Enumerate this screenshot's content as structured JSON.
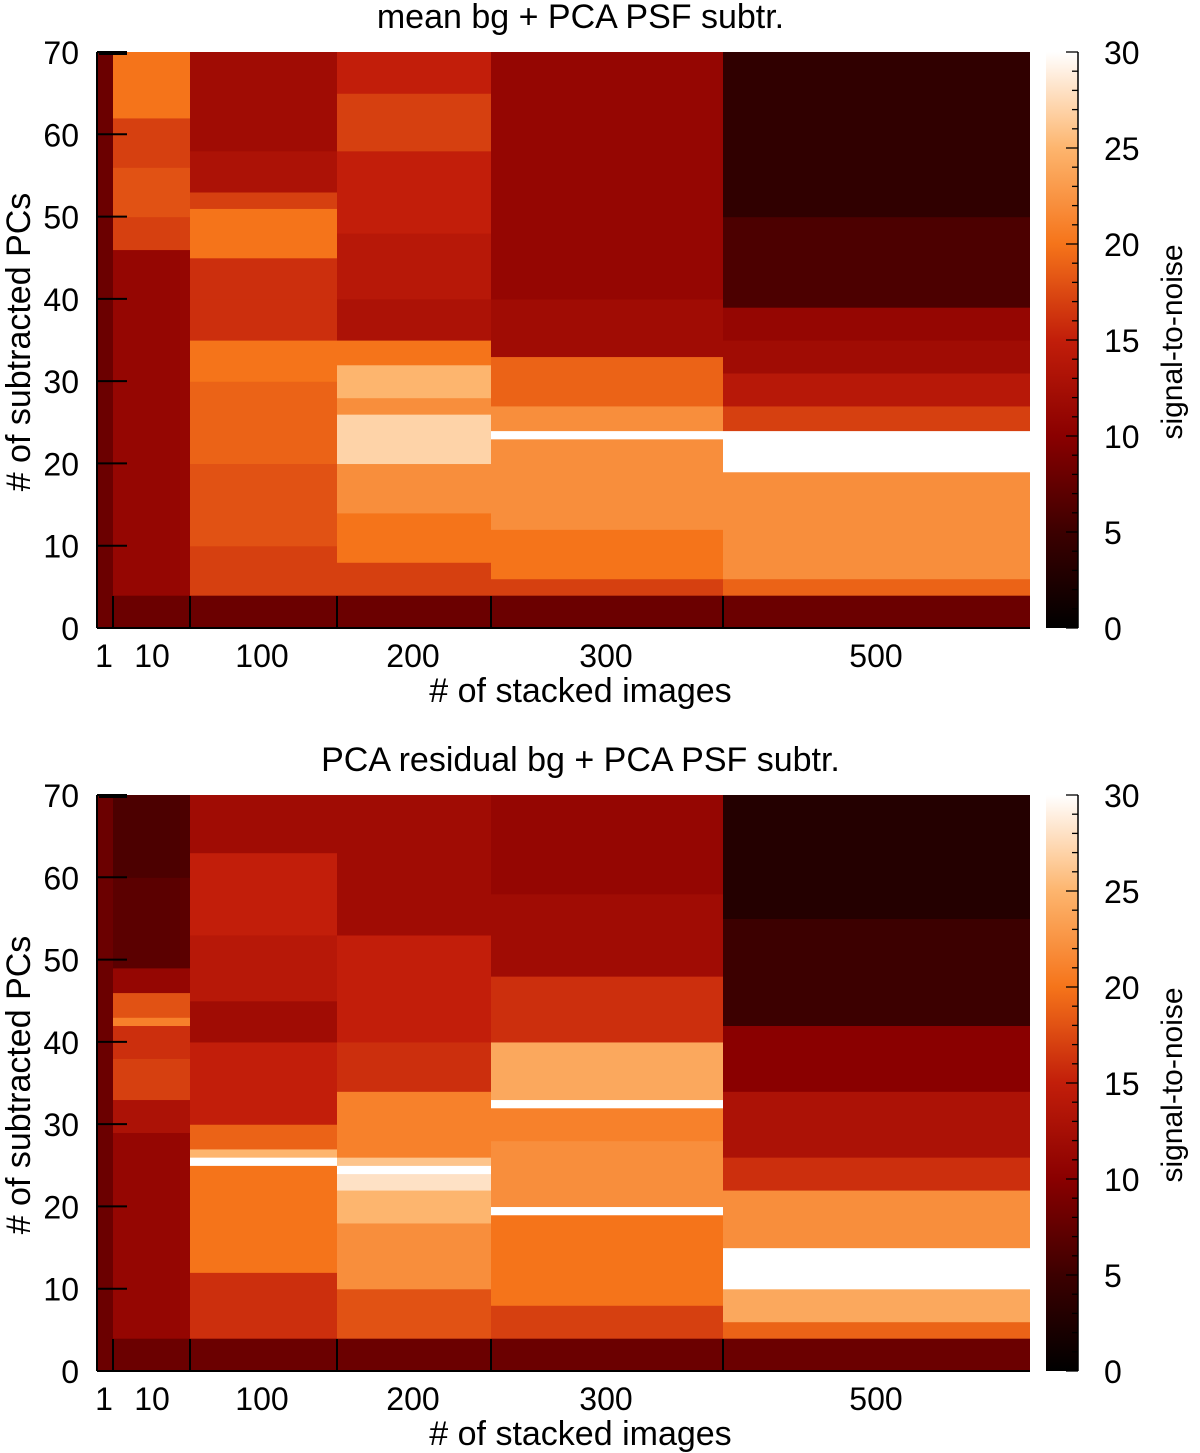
{
  "chart_data": [
    {
      "type": "heatmap",
      "title": "mean bg + PCA PSF subtr.",
      "xlabel": "# of stacked images",
      "ylabel": "# of subtracted PCs",
      "colorbar_label": "signal-to-noise",
      "x_categories": [
        "1",
        "10",
        "100",
        "200",
        "300",
        "500"
      ],
      "ylim": [
        0,
        70
      ],
      "y_ticks": [
        0,
        10,
        20,
        30,
        40,
        50,
        60,
        70
      ],
      "colorbar_range": [
        0,
        30
      ],
      "colorbar_ticks": [
        0,
        5,
        10,
        15,
        20,
        25,
        30
      ],
      "colormap": [
        "#000000",
        "#3c0000",
        "#8a0000",
        "#c21e0a",
        "#f5741a",
        "#fdb56e",
        "#ffffff"
      ],
      "columns": [
        {
          "category": "1",
          "segments": [
            {
              "y0": 0,
              "y1": 70,
              "value": 8
            }
          ]
        },
        {
          "category": "10",
          "segments": [
            {
              "y0": 0,
              "y1": 4,
              "value": 8
            },
            {
              "y0": 4,
              "y1": 46,
              "value": 11
            },
            {
              "y0": 46,
              "y1": 50,
              "value": 17
            },
            {
              "y0": 50,
              "y1": 56,
              "value": 18
            },
            {
              "y0": 56,
              "y1": 62,
              "value": 17
            },
            {
              "y0": 62,
              "y1": 70,
              "value": 20
            }
          ]
        },
        {
          "category": "100",
          "segments": [
            {
              "y0": 0,
              "y1": 4,
              "value": 8
            },
            {
              "y0": 4,
              "y1": 10,
              "value": 17
            },
            {
              "y0": 10,
              "y1": 20,
              "value": 18
            },
            {
              "y0": 20,
              "y1": 30,
              "value": 19
            },
            {
              "y0": 30,
              "y1": 35,
              "value": 20
            },
            {
              "y0": 35,
              "y1": 40,
              "value": 16
            },
            {
              "y0": 40,
              "y1": 45,
              "value": 16
            },
            {
              "y0": 45,
              "y1": 51,
              "value": 20
            },
            {
              "y0": 51,
              "y1": 53,
              "value": 17
            },
            {
              "y0": 53,
              "y1": 58,
              "value": 13
            },
            {
              "y0": 58,
              "y1": 70,
              "value": 12
            }
          ]
        },
        {
          "category": "200",
          "segments": [
            {
              "y0": 0,
              "y1": 4,
              "value": 8
            },
            {
              "y0": 4,
              "y1": 8,
              "value": 17
            },
            {
              "y0": 8,
              "y1": 14,
              "value": 20
            },
            {
              "y0": 14,
              "y1": 20,
              "value": 22
            },
            {
              "y0": 20,
              "y1": 26,
              "value": 27
            },
            {
              "y0": 26,
              "y1": 28,
              "value": 22
            },
            {
              "y0": 28,
              "y1": 32,
              "value": 25
            },
            {
              "y0": 32,
              "y1": 35,
              "value": 20
            },
            {
              "y0": 35,
              "y1": 40,
              "value": 13
            },
            {
              "y0": 40,
              "y1": 48,
              "value": 14
            },
            {
              "y0": 48,
              "y1": 58,
              "value": 15
            },
            {
              "y0": 58,
              "y1": 65,
              "value": 17
            },
            {
              "y0": 65,
              "y1": 70,
              "value": 15
            }
          ]
        },
        {
          "category": "300",
          "segments": [
            {
              "y0": 0,
              "y1": 4,
              "value": 8
            },
            {
              "y0": 4,
              "y1": 6,
              "value": 17
            },
            {
              "y0": 6,
              "y1": 12,
              "value": 20
            },
            {
              "y0": 12,
              "y1": 23,
              "value": 22
            },
            {
              "y0": 23,
              "y1": 24,
              "value": 30
            },
            {
              "y0": 24,
              "y1": 27,
              "value": 22
            },
            {
              "y0": 27,
              "y1": 33,
              "value": 19
            },
            {
              "y0": 33,
              "y1": 40,
              "value": 12
            },
            {
              "y0": 40,
              "y1": 55,
              "value": 11
            },
            {
              "y0": 55,
              "y1": 70,
              "value": 11
            }
          ]
        },
        {
          "category": "500",
          "segments": [
            {
              "y0": 0,
              "y1": 4,
              "value": 8
            },
            {
              "y0": 4,
              "y1": 6,
              "value": 19
            },
            {
              "y0": 6,
              "y1": 19,
              "value": 22
            },
            {
              "y0": 19,
              "y1": 24,
              "value": 30
            },
            {
              "y0": 24,
              "y1": 27,
              "value": 17
            },
            {
              "y0": 27,
              "y1": 31,
              "value": 14
            },
            {
              "y0": 31,
              "y1": 35,
              "value": 12
            },
            {
              "y0": 35,
              "y1": 39,
              "value": 11
            },
            {
              "y0": 39,
              "y1": 50,
              "value": 6
            },
            {
              "y0": 50,
              "y1": 70,
              "value": 4
            }
          ]
        }
      ]
    },
    {
      "type": "heatmap",
      "title": "PCA residual bg + PCA PSF subtr.",
      "xlabel": "# of stacked images",
      "ylabel": "# of subtracted PCs",
      "colorbar_label": "signal-to-noise",
      "x_categories": [
        "1",
        "10",
        "100",
        "200",
        "300",
        "500"
      ],
      "ylim": [
        0,
        70
      ],
      "y_ticks": [
        0,
        10,
        20,
        30,
        40,
        50,
        60,
        70
      ],
      "colorbar_range": [
        0,
        30
      ],
      "colorbar_ticks": [
        0,
        5,
        10,
        15,
        20,
        25,
        30
      ],
      "colormap": [
        "#000000",
        "#3c0000",
        "#8a0000",
        "#c21e0a",
        "#f5741a",
        "#fdb56e",
        "#ffffff"
      ],
      "columns": [
        {
          "category": "1",
          "segments": [
            {
              "y0": 0,
              "y1": 70,
              "value": 8
            }
          ]
        },
        {
          "category": "10",
          "segments": [
            {
              "y0": 0,
              "y1": 4,
              "value": 8
            },
            {
              "y0": 4,
              "y1": 29,
              "value": 11
            },
            {
              "y0": 29,
              "y1": 33,
              "value": 13
            },
            {
              "y0": 33,
              "y1": 38,
              "value": 17
            },
            {
              "y0": 38,
              "y1": 42,
              "value": 16
            },
            {
              "y0": 42,
              "y1": 43,
              "value": 21
            },
            {
              "y0": 43,
              "y1": 46,
              "value": 18
            },
            {
              "y0": 46,
              "y1": 49,
              "value": 11
            },
            {
              "y0": 49,
              "y1": 60,
              "value": 7
            },
            {
              "y0": 60,
              "y1": 70,
              "value": 6
            }
          ]
        },
        {
          "category": "100",
          "segments": [
            {
              "y0": 0,
              "y1": 4,
              "value": 8
            },
            {
              "y0": 4,
              "y1": 12,
              "value": 16
            },
            {
              "y0": 12,
              "y1": 25,
              "value": 20
            },
            {
              "y0": 25,
              "y1": 26,
              "value": 30
            },
            {
              "y0": 26,
              "y1": 27,
              "value": 25
            },
            {
              "y0": 27,
              "y1": 30,
              "value": 19
            },
            {
              "y0": 30,
              "y1": 40,
              "value": 15
            },
            {
              "y0": 40,
              "y1": 45,
              "value": 12
            },
            {
              "y0": 45,
              "y1": 53,
              "value": 14
            },
            {
              "y0": 53,
              "y1": 63,
              "value": 15
            },
            {
              "y0": 63,
              "y1": 70,
              "value": 12
            }
          ]
        },
        {
          "category": "200",
          "segments": [
            {
              "y0": 0,
              "y1": 4,
              "value": 8
            },
            {
              "y0": 4,
              "y1": 10,
              "value": 18
            },
            {
              "y0": 10,
              "y1": 18,
              "value": 22
            },
            {
              "y0": 18,
              "y1": 22,
              "value": 25
            },
            {
              "y0": 22,
              "y1": 24,
              "value": 28
            },
            {
              "y0": 24,
              "y1": 25,
              "value": 30
            },
            {
              "y0": 25,
              "y1": 26,
              "value": 26
            },
            {
              "y0": 26,
              "y1": 34,
              "value": 21
            },
            {
              "y0": 34,
              "y1": 40,
              "value": 16
            },
            {
              "y0": 40,
              "y1": 53,
              "value": 15
            },
            {
              "y0": 53,
              "y1": 70,
              "value": 12
            }
          ]
        },
        {
          "category": "300",
          "segments": [
            {
              "y0": 0,
              "y1": 4,
              "value": 8
            },
            {
              "y0": 4,
              "y1": 8,
              "value": 17
            },
            {
              "y0": 8,
              "y1": 19,
              "value": 20
            },
            {
              "y0": 19,
              "y1": 20,
              "value": 30
            },
            {
              "y0": 20,
              "y1": 28,
              "value": 22
            },
            {
              "y0": 28,
              "y1": 32,
              "value": 21
            },
            {
              "y0": 32,
              "y1": 33,
              "value": 30
            },
            {
              "y0": 33,
              "y1": 40,
              "value": 24
            },
            {
              "y0": 40,
              "y1": 48,
              "value": 16
            },
            {
              "y0": 48,
              "y1": 58,
              "value": 12
            },
            {
              "y0": 58,
              "y1": 70,
              "value": 11
            }
          ]
        },
        {
          "category": "500",
          "segments": [
            {
              "y0": 0,
              "y1": 4,
              "value": 8
            },
            {
              "y0": 4,
              "y1": 6,
              "value": 19
            },
            {
              "y0": 6,
              "y1": 10,
              "value": 24
            },
            {
              "y0": 10,
              "y1": 15,
              "value": 30
            },
            {
              "y0": 15,
              "y1": 22,
              "value": 22
            },
            {
              "y0": 22,
              "y1": 26,
              "value": 16
            },
            {
              "y0": 26,
              "y1": 34,
              "value": 13
            },
            {
              "y0": 34,
              "y1": 42,
              "value": 10
            },
            {
              "y0": 42,
              "y1": 55,
              "value": 5
            },
            {
              "y0": 55,
              "y1": 70,
              "value": 3
            }
          ]
        }
      ]
    }
  ]
}
